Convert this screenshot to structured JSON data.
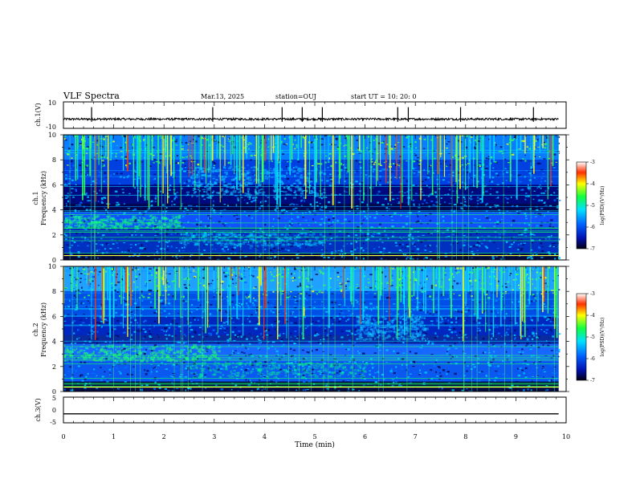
{
  "header": {
    "title": "VLF Spectra",
    "date": "Mar.13, 2025",
    "station": "station=OUJ",
    "start": "start UT =  10: 20: 0"
  },
  "chart_data": [
    {
      "type": "line",
      "name": "ch.1 waveform",
      "ylabel": "ch.1(V)",
      "ylim": [
        -10,
        10
      ],
      "ytick_labels": [
        "10",
        "-10"
      ],
      "baseline": -3,
      "spikes_min": [
        0.56,
        2.97,
        4.35,
        4.75,
        5.15,
        6.65,
        6.86,
        7.9,
        9.35
      ]
    },
    {
      "type": "heatmap",
      "name": "ch.1 spectrogram",
      "ylabel": "ch.1 Frequency (kHz)",
      "ylim": [
        0,
        10
      ],
      "ytick_labels": [
        "0",
        "2",
        "4",
        "6",
        "8",
        "10"
      ],
      "colorbar": {
        "label": "log(PSD)(V²/Hz)",
        "range": [
          -7,
          -3
        ],
        "tick_labels": [
          "-3",
          "-4",
          "-5",
          "-6",
          "-7"
        ]
      }
    },
    {
      "type": "heatmap",
      "name": "ch.2 spectrogram",
      "ylabel": "ch.2 Frequency (kHz)",
      "ylim": [
        0,
        10
      ],
      "ytick_labels": [
        "0",
        "2",
        "4",
        "6",
        "8",
        "10"
      ],
      "colorbar": {
        "label": "log(PSD)(V²/Hz)",
        "range": [
          -7,
          -3
        ],
        "tick_labels": [
          "-3",
          "-4",
          "-5",
          "-6",
          "-7"
        ]
      }
    },
    {
      "type": "line",
      "name": "ch.3 level",
      "ylabel": "ch.3(V)",
      "ylim": [
        -5,
        5
      ],
      "ytick_labels": [
        "5",
        "0",
        "-5"
      ],
      "value": -1.5
    }
  ],
  "xaxis": {
    "label": "Time  (min)",
    "range": [
      0,
      10
    ],
    "tick_labels": [
      "0",
      "1",
      "2",
      "3",
      "4",
      "5",
      "6",
      "7",
      "8",
      "9",
      "10"
    ],
    "data_end_min": 9.85
  }
}
